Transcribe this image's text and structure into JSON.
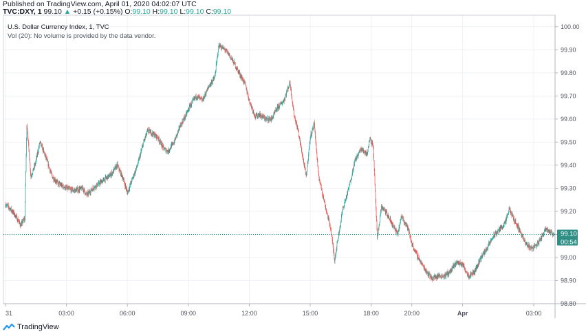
{
  "header": {
    "published": "Published on TradingView.com, April 01, 2020 04:02:07 UTC",
    "symbol": "TVC:DXY, 1",
    "last": "99.10",
    "change_arrow": "▲",
    "change": "+0.15 (+0.15%)",
    "o_label": "O:",
    "o_value": "99.10",
    "h_label": "H:",
    "h_value": "99.10",
    "l_label": "L:",
    "l_value": "99.10",
    "c_label": "C:",
    "c_value": "99.10"
  },
  "legend": {
    "title": "U.S. Dollar Currency Index, 1, TVC",
    "volume_note": "Vol (20): No volume is provided by the data vendor."
  },
  "price_tag": {
    "value": "99.10",
    "countdown": "00:54"
  },
  "footer": {
    "brand": "TradingView",
    "logo_icon": "tradingview-logo-icon"
  },
  "colors": {
    "up": "#26a69a",
    "down": "#ef5350",
    "grid": "#eef1f5",
    "last_line": "#2f8f86"
  },
  "chart_data": {
    "type": "candlestick",
    "title": "U.S. Dollar Currency Index, 1, TVC",
    "ylim": [
      98.8,
      100.05
    ],
    "y_ticks": [
      "100.00",
      "99.90",
      "99.80",
      "99.70",
      "99.60",
      "99.50",
      "99.40",
      "99.30",
      "99.20",
      "99.10",
      "99.00",
      "98.90",
      "98.80"
    ],
    "x_ticks": [
      {
        "label": "31",
        "hour": 0
      },
      {
        "label": "03:00",
        "hour": 3
      },
      {
        "label": "06:00",
        "hour": 6
      },
      {
        "label": "09:00",
        "hour": 9
      },
      {
        "label": "12:00",
        "hour": 12
      },
      {
        "label": "15:00",
        "hour": 15
      },
      {
        "label": "18:00",
        "hour": 18
      },
      {
        "label": "20:00",
        "hour": 20
      },
      {
        "label": "Apr",
        "hour": 22.5
      },
      {
        "label": "03:00",
        "hour": 26
      }
    ],
    "x_range_hours": [
      -0.1,
      27.05
    ],
    "grid": true,
    "last_price": 99.1,
    "path_hours": [
      0,
      0.25,
      0.5,
      0.75,
      0.95,
      1.05,
      1.25,
      1.45,
      1.6,
      1.7,
      2.0,
      2.3,
      2.6,
      3.0,
      3.4,
      3.8,
      4.0,
      4.3,
      4.6,
      4.9,
      5.2,
      5.5,
      5.8,
      6.0,
      6.2,
      6.5,
      6.8,
      7.0,
      7.2,
      7.5,
      7.8,
      8.0,
      8.3,
      8.6,
      8.9,
      9.1,
      9.4,
      9.7,
      10.0,
      10.3,
      10.5,
      10.8,
      11.0,
      11.2,
      11.5,
      11.8,
      12.0,
      12.3,
      12.5,
      12.8,
      13.1,
      13.4,
      13.7,
      14.0,
      14.2,
      14.4,
      14.6,
      14.8,
      15.0,
      15.2,
      15.4,
      15.6,
      15.8,
      16.0,
      16.2,
      16.4,
      16.6,
      16.9,
      17.2,
      17.5,
      17.8,
      17.95,
      18.1,
      18.3,
      18.5,
      18.7,
      19.0,
      19.3,
      19.5,
      19.8,
      20.0,
      20.2,
      20.5,
      20.8,
      21.0,
      21.3,
      21.6,
      21.9,
      22.2,
      22.5,
      22.8,
      23.1,
      23.4,
      23.7,
      24.0,
      24.3,
      24.6,
      24.8,
      25.0,
      25.3,
      25.6,
      25.9,
      26.2,
      26.4,
      26.6,
      26.8,
      27.0
    ],
    "path_close": [
      99.23,
      99.21,
      99.18,
      99.14,
      99.17,
      99.58,
      99.35,
      99.4,
      99.46,
      99.5,
      99.43,
      99.35,
      99.32,
      99.3,
      99.29,
      99.3,
      99.27,
      99.3,
      99.32,
      99.34,
      99.36,
      99.4,
      99.34,
      99.28,
      99.33,
      99.4,
      99.5,
      99.55,
      99.54,
      99.52,
      99.47,
      99.46,
      99.5,
      99.57,
      99.62,
      99.66,
      99.7,
      99.68,
      99.74,
      99.78,
      99.92,
      99.9,
      99.88,
      99.85,
      99.8,
      99.75,
      99.68,
      99.61,
      99.62,
      99.6,
      99.6,
      99.65,
      99.68,
      99.76,
      99.62,
      99.55,
      99.45,
      99.35,
      99.52,
      99.58,
      99.36,
      99.28,
      99.2,
      99.13,
      98.99,
      99.1,
      99.21,
      99.3,
      99.42,
      99.47,
      99.45,
      99.52,
      99.48,
      99.08,
      99.22,
      99.2,
      99.15,
      99.1,
      99.18,
      99.13,
      99.06,
      99.02,
      98.97,
      98.93,
      98.91,
      98.92,
      98.92,
      98.94,
      98.98,
      98.97,
      98.92,
      98.94,
      99.0,
      99.04,
      99.09,
      99.12,
      99.15,
      99.21,
      99.17,
      99.12,
      99.06,
      99.04,
      99.06,
      99.09,
      99.13,
      99.11,
      99.1
    ],
    "candle_interval_minutes": 1
  }
}
